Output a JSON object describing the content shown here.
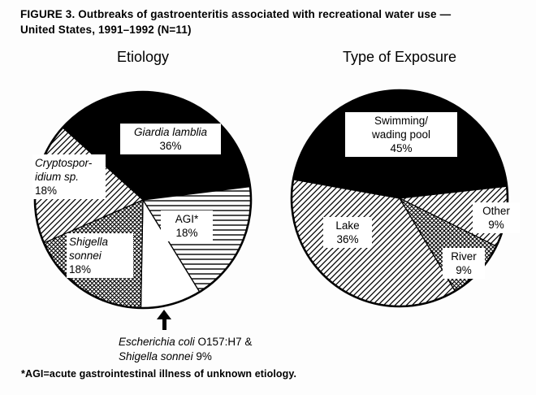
{
  "figure": {
    "title_line1": "FIGURE 3. Outbreaks of gastroenteritis associated with recreational water use —",
    "title_line2": "United States, 1991–1992 (N=11)",
    "footnote": "*AGI=acute gastrointestinal illness of unknown etiology."
  },
  "colors": {
    "ink": "#000000",
    "paper": "#ffffff"
  },
  "chart_data": [
    {
      "type": "pie",
      "title": "Etiology",
      "start_angle_deg": -48,
      "legend_position": "labels-on-chart",
      "slices": [
        {
          "key": "giardia-lamblia",
          "label": "Giardia lamblia",
          "pct": 36,
          "pct_label": "36%",
          "fill": "black"
        },
        {
          "key": "agi",
          "label": "AGI*",
          "pct": 18,
          "pct_label": "18%",
          "fill": "horiz"
        },
        {
          "key": "e-coli-shigella",
          "label": "Escherichia coli O157:H7 & Shigella sonnei",
          "pct": 9,
          "pct_label": "9%",
          "fill": "white"
        },
        {
          "key": "shigella-sonnei",
          "label": "Shigella sonnei",
          "pct": 18,
          "pct_label": "18%",
          "fill": "cross"
        },
        {
          "key": "cryptosporidium",
          "label": "Cryptosporidium sp.",
          "pct": 18,
          "pct_label": "18%",
          "fill": "diag"
        }
      ]
    },
    {
      "type": "pie",
      "title": "Type of Exposure",
      "start_angle_deg": -80,
      "legend_position": "labels-on-chart",
      "slices": [
        {
          "key": "swimming-wading-pool",
          "label": "Swimming/wading pool",
          "pct": 45,
          "pct_label": "45%",
          "fill": "black"
        },
        {
          "key": "other",
          "label": "Other",
          "pct": 9,
          "pct_label": "9%",
          "fill": "diag"
        },
        {
          "key": "river",
          "label": "River",
          "pct": 9,
          "pct_label": "9%",
          "fill": "cross"
        },
        {
          "key": "lake",
          "label": "Lake",
          "pct": 36,
          "pct_label": "36%",
          "fill": "diag"
        }
      ]
    }
  ],
  "labels": {
    "giardia": {
      "name": "Giardia lamblia",
      "pct": "36%"
    },
    "cryptosporidium": {
      "line1": "Cryptospor-",
      "line2": "idium sp.",
      "pct": "18%"
    },
    "shigella": {
      "line1": "Shigella",
      "line2": "sonnei",
      "pct": "18%"
    },
    "agi": {
      "name": "AGI*",
      "pct": "18%"
    },
    "ecoli_callout": {
      "italic1": "Escherichia coli",
      "plain1": " O157:H7 &",
      "italic2": "Shigella sonnei",
      "plain2": " 9%"
    },
    "pool": {
      "line1": "Swimming/",
      "line2": "wading pool",
      "pct": "45%"
    },
    "lake": {
      "name": "Lake",
      "pct": "36%"
    },
    "other": {
      "name": "Other",
      "pct": "9%"
    },
    "river": {
      "name": "River",
      "pct": "9%"
    }
  }
}
